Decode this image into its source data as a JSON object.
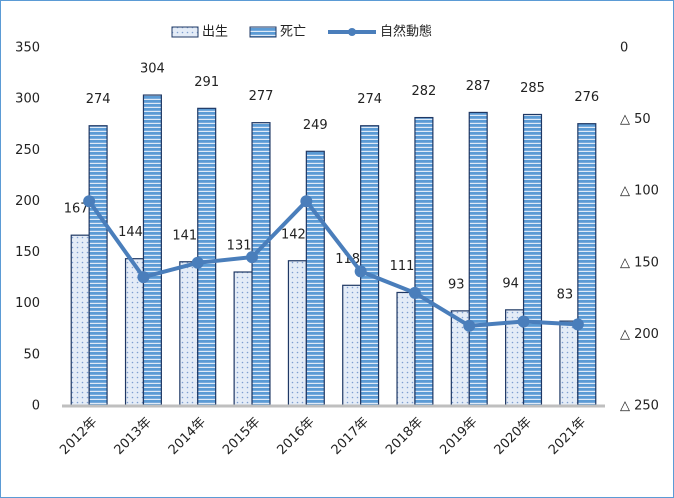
{
  "chart_data": {
    "type": "bar",
    "categories": [
      "2012年",
      "2013年",
      "2014年",
      "2015年",
      "2016年",
      "2017年",
      "2018年",
      "2019年",
      "2020年",
      "2021年"
    ],
    "series": [
      {
        "name": "出生",
        "type": "bar",
        "color": "#dce6f4",
        "values": [
          167,
          144,
          141,
          131,
          142,
          118,
          111,
          93,
          94,
          83
        ]
      },
      {
        "name": "死亡",
        "type": "bar",
        "color": "#5b9bd5",
        "values": [
          274,
          304,
          291,
          277,
          249,
          274,
          282,
          287,
          285,
          276
        ]
      },
      {
        "name": "自然動態",
        "type": "line",
        "axis": "y2",
        "color": "#4a7ebb",
        "values": [
          -107,
          -160,
          -150,
          -146,
          -107,
          -156,
          -171,
          -194,
          -191,
          -193
        ]
      }
    ],
    "ylim": [
      0,
      350
    ],
    "yticks": [
      0,
      50,
      100,
      150,
      200,
      250,
      300,
      350
    ],
    "y2lim": [
      -250,
      0
    ],
    "y2ticks": [
      0,
      {
        "value": -50,
        "label": "△ 50"
      },
      {
        "value": -100,
        "label": "△ 100"
      },
      {
        "value": -150,
        "label": "△ 150"
      },
      {
        "value": -200,
        "label": "△ 200"
      },
      {
        "value": -250,
        "label": "△ 250"
      }
    ],
    "legend": "top"
  }
}
